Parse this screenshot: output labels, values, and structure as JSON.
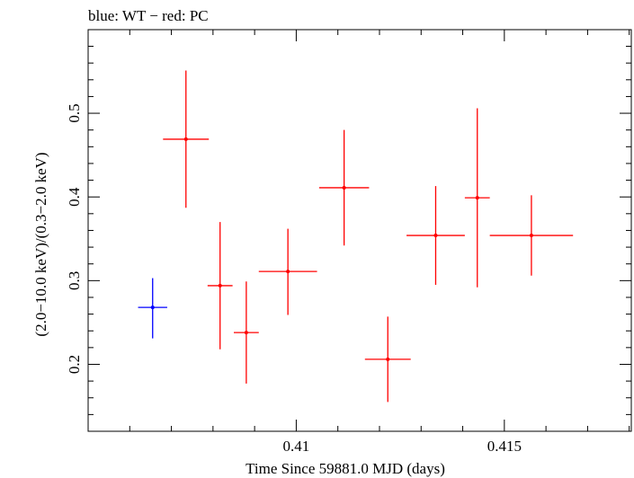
{
  "chart_data": {
    "type": "scatter",
    "title": "blue: WT − red: PC",
    "xlabel": "Time Since 59881.0 MJD (days)",
    "ylabel": "(2.0−10.0 keV)/(0.3−2.0 keV)",
    "xlim": [
      0.405,
      0.41805
    ],
    "ylim": [
      0.12,
      0.5999
    ],
    "x_ticks": [
      {
        "value": 0.41,
        "label": "0.41"
      },
      {
        "value": 0.415,
        "label": "0.415"
      }
    ],
    "y_ticks": [
      {
        "value": 0.2,
        "label": "0.2"
      },
      {
        "value": 0.3,
        "label": "0.3"
      },
      {
        "value": 0.4,
        "label": "0.4"
      },
      {
        "value": 0.5,
        "label": "0.5"
      }
    ],
    "grid": false,
    "series": [
      {
        "name": "WT",
        "color": "#0000ff",
        "points": [
          {
            "x": 0.40655,
            "xerr": 0.00035,
            "y": 0.268,
            "yerr_low": 0.037,
            "yerr_high": 0.035
          }
        ]
      },
      {
        "name": "PC",
        "color": "#ff0000",
        "points": [
          {
            "x": 0.40735,
            "xerr": 0.00055,
            "y": 0.469,
            "yerr_low": 0.082,
            "yerr_high": 0.082
          },
          {
            "x": 0.40817,
            "xerr": 0.0003,
            "y": 0.294,
            "yerr_low": 0.076,
            "yerr_high": 0.076
          },
          {
            "x": 0.4088,
            "xerr": 0.0003,
            "y": 0.238,
            "yerr_low": 0.061,
            "yerr_high": 0.061
          },
          {
            "x": 0.4098,
            "xerr": 0.0007,
            "y": 0.311,
            "yerr_low": 0.052,
            "yerr_high": 0.051
          },
          {
            "x": 0.41115,
            "xerr": 0.0006,
            "y": 0.411,
            "yerr_low": 0.069,
            "yerr_high": 0.069
          },
          {
            "x": 0.4122,
            "xerr": 0.00055,
            "y": 0.206,
            "yerr_low": 0.051,
            "yerr_high": 0.051
          },
          {
            "x": 0.41335,
            "xerr": 0.0007,
            "y": 0.354,
            "yerr_low": 0.059,
            "yerr_high": 0.059
          },
          {
            "x": 0.41435,
            "xerr": 0.0003,
            "y": 0.399,
            "yerr_low": 0.107,
            "yerr_high": 0.107
          },
          {
            "x": 0.41565,
            "xerr": 0.001,
            "y": 0.354,
            "yerr_low": 0.048,
            "yerr_high": 0.048
          }
        ]
      }
    ]
  }
}
